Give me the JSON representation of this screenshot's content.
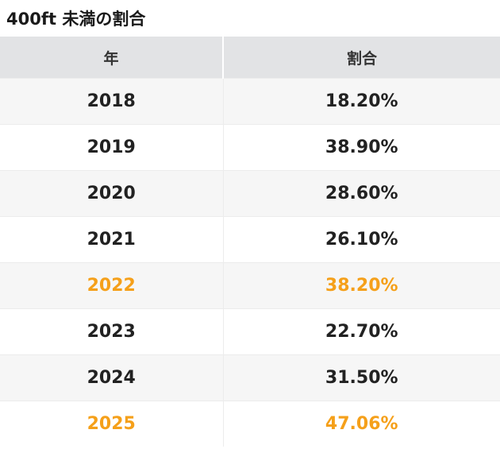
{
  "title": "400ft 未満の割合",
  "table": {
    "headers": [
      "年",
      "割合"
    ],
    "rows": [
      {
        "year": "2018",
        "rate": "18.20%",
        "highlight": false
      },
      {
        "year": "2019",
        "rate": "38.90%",
        "highlight": false
      },
      {
        "year": "2020",
        "rate": "28.60%",
        "highlight": false
      },
      {
        "year": "2021",
        "rate": "26.10%",
        "highlight": false
      },
      {
        "year": "2022",
        "rate": "38.20%",
        "highlight": true
      },
      {
        "year": "2023",
        "rate": "22.70%",
        "highlight": false
      },
      {
        "year": "2024",
        "rate": "31.50%",
        "highlight": false
      },
      {
        "year": "2025",
        "rate": "47.06%",
        "highlight": true
      }
    ]
  },
  "colors": {
    "highlight": "#f5a01a",
    "header_bg": "#e2e3e5",
    "row_alt_bg": "#f6f6f6"
  }
}
